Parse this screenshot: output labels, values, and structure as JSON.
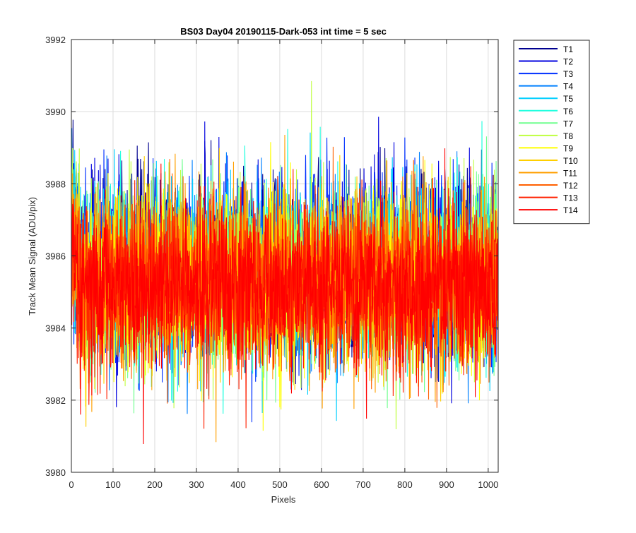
{
  "chart_data": {
    "type": "line",
    "title": "BS03 Day04 20190115-Dark-053 int time = 5 sec",
    "xlabel": "Pixels",
    "ylabel": "Track Mean Signal (ADU/pix)",
    "xlim": [
      0,
      1024
    ],
    "ylim": [
      3980,
      3992
    ],
    "xticks": [
      0,
      100,
      200,
      300,
      400,
      500,
      600,
      700,
      800,
      900,
      1000
    ],
    "yticks": [
      3980,
      3982,
      3984,
      3986,
      3988,
      3990,
      3992
    ],
    "grid": true,
    "legend_position": "outside-top-right",
    "series": [
      {
        "name": "T1",
        "color": "#00008f",
        "mean": 3985.8,
        "spread": 1.25
      },
      {
        "name": "T2",
        "color": "#0000df",
        "mean": 3985.7,
        "spread": 1.25
      },
      {
        "name": "T3",
        "color": "#0030ff",
        "mean": 3985.6,
        "spread": 1.25
      },
      {
        "name": "T4",
        "color": "#0080ff",
        "mean": 3985.6,
        "spread": 1.25
      },
      {
        "name": "T5",
        "color": "#00cfff",
        "mean": 3985.5,
        "spread": 1.2
      },
      {
        "name": "T6",
        "color": "#20ffdf",
        "mean": 3985.5,
        "spread": 1.2
      },
      {
        "name": "T7",
        "color": "#70ff8f",
        "mean": 3985.4,
        "spread": 1.2
      },
      {
        "name": "T8",
        "color": "#bfff40",
        "mean": 3985.4,
        "spread": 1.2
      },
      {
        "name": "T9",
        "color": "#ffff00",
        "mean": 3985.3,
        "spread": 1.2
      },
      {
        "name": "T10",
        "color": "#ffcf00",
        "mean": 3985.3,
        "spread": 1.2
      },
      {
        "name": "T11",
        "color": "#ff9f00",
        "mean": 3985.3,
        "spread": 1.2
      },
      {
        "name": "T12",
        "color": "#ff6000",
        "mean": 3985.2,
        "spread": 1.2
      },
      {
        "name": "T13",
        "color": "#ff2000",
        "mean": 3985.2,
        "spread": 1.2
      },
      {
        "name": "T14",
        "color": "#ff0000",
        "mean": 3985.1,
        "spread": 1.15
      }
    ]
  }
}
